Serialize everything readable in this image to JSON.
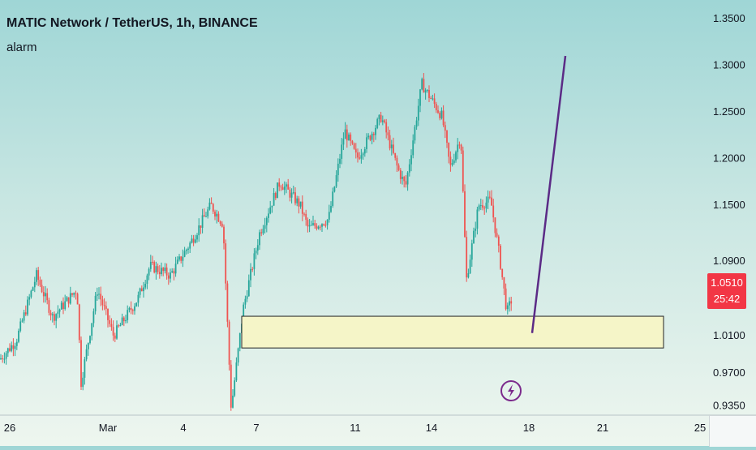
{
  "header": {
    "title": "MATIC Network / TetherUS, 1h, BINANCE",
    "subtitle": "alarm"
  },
  "last_price": {
    "value": "1.0510",
    "countdown": "25:42"
  },
  "colors": {
    "up": "#26a69a",
    "down": "#ef5350",
    "zone_fill": "#f5f5c8",
    "projection_line": "#5b2a86",
    "price_tag": "#f23645",
    "alert_icon": "#7b2a8c"
  },
  "chart_data": {
    "type": "candlestick",
    "y_axis": {
      "ticks": [
        "1.3500",
        "1.3000",
        "1.2500",
        "1.2000",
        "1.1500",
        "1.0900",
        "1.0510",
        "1.0100",
        "0.9700",
        "0.9350"
      ],
      "range": [
        0.925,
        1.37
      ]
    },
    "x_axis": {
      "ticks": [
        "26",
        "Mar",
        "4",
        "7",
        "11",
        "14",
        "18",
        "21",
        "25"
      ]
    },
    "price_path": [
      [
        0,
        0.985
      ],
      [
        20,
        1.005
      ],
      [
        45,
        1.075
      ],
      [
        65,
        1.03
      ],
      [
        95,
        1.06
      ],
      [
        100,
        0.96
      ],
      [
        120,
        1.06
      ],
      [
        140,
        1.01
      ],
      [
        170,
        1.05
      ],
      [
        185,
        1.085
      ],
      [
        210,
        1.075
      ],
      [
        235,
        1.11
      ],
      [
        260,
        1.15
      ],
      [
        275,
        1.13
      ],
      [
        285,
        0.932
      ],
      [
        300,
        1.04
      ],
      [
        320,
        1.12
      ],
      [
        345,
        1.175
      ],
      [
        370,
        1.15
      ],
      [
        380,
        1.125
      ],
      [
        405,
        1.135
      ],
      [
        425,
        1.23
      ],
      [
        440,
        1.2
      ],
      [
        470,
        1.245
      ],
      [
        490,
        1.19
      ],
      [
        500,
        1.17
      ],
      [
        520,
        1.28
      ],
      [
        545,
        1.245
      ],
      [
        555,
        1.19
      ],
      [
        568,
        1.225
      ],
      [
        575,
        1.07
      ],
      [
        590,
        1.15
      ],
      [
        605,
        1.155
      ],
      [
        615,
        1.1
      ],
      [
        625,
        1.035
      ],
      [
        632,
        1.052
      ]
    ],
    "support_zone": {
      "low": 0.997,
      "high": 1.031
    },
    "projection": {
      "from": 1.013,
      "to": 1.31
    },
    "legend": "none",
    "grid": false
  }
}
